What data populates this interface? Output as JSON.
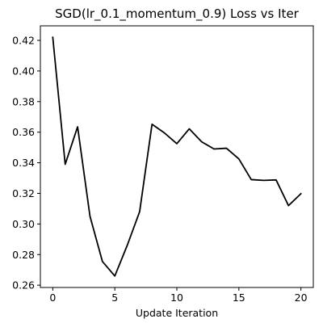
{
  "chart_data": {
    "type": "line",
    "title": "SGD(lr_0.1_momentum_0.9) Loss vs Iter",
    "xlabel": "Update Iteration",
    "ylabel": "",
    "xlim": [
      -1.0,
      21.0
    ],
    "ylim": [
      0.2585,
      0.4295
    ],
    "xticks": [
      0,
      5,
      10,
      15,
      20
    ],
    "xtick_labels": [
      "0",
      "5",
      "10",
      "15",
      "20"
    ],
    "yticks": [
      0.26,
      0.28,
      0.3,
      0.32,
      0.34,
      0.36,
      0.38,
      0.4,
      0.42
    ],
    "ytick_labels": [
      "0.26",
      "0.28",
      "0.30",
      "0.32",
      "0.34",
      "0.36",
      "0.38",
      "0.40",
      "0.42"
    ],
    "grid": false,
    "series": [
      {
        "color": "#000000",
        "x": [
          0,
          1,
          2,
          3,
          4,
          5,
          6,
          7,
          8,
          9,
          10,
          11,
          12,
          13,
          14,
          15,
          16,
          17,
          18,
          19,
          20
        ],
        "y": [
          0.422,
          0.339,
          0.3635,
          0.305,
          0.2755,
          0.266,
          0.286,
          0.308,
          0.3652,
          0.3595,
          0.3525,
          0.3622,
          0.3537,
          0.349,
          0.3495,
          0.3425,
          0.329,
          0.3285,
          0.3288,
          0.312,
          0.3198
        ]
      }
    ]
  }
}
